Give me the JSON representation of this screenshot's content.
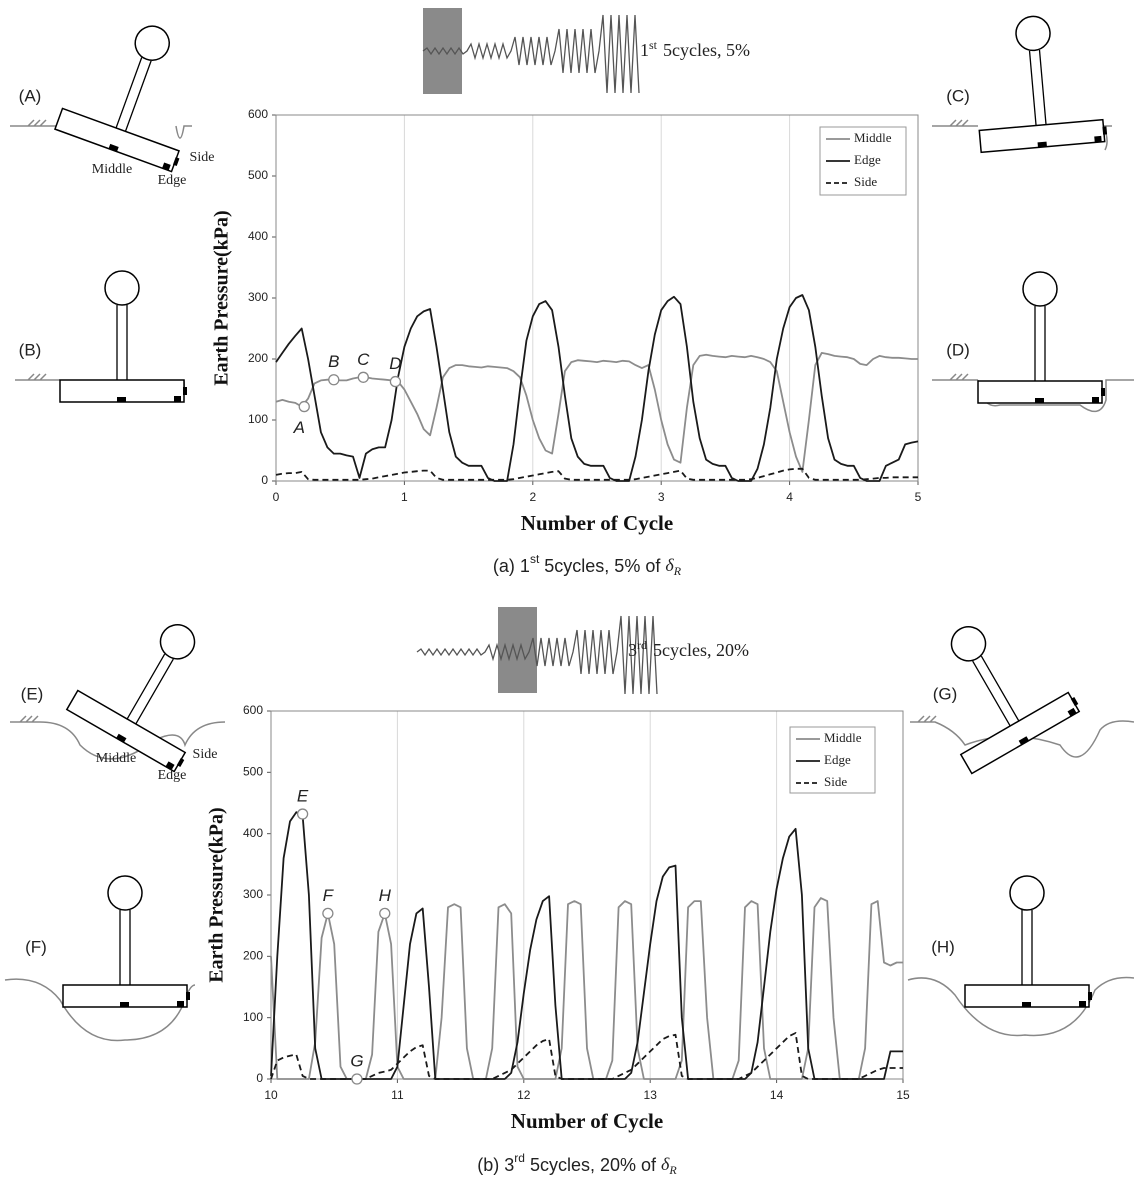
{
  "chart_data": [
    {
      "type": "line",
      "header": {
        "num": "1",
        "sup": "st",
        "text": "5cycles, 5%"
      },
      "caption": {
        "prefix": "(a)  1",
        "sup": "st",
        "text": " 5cycles, 5% of ",
        "symbol": "δ",
        "sub": "R"
      },
      "xlabel": "Number of Cycle",
      "ylabel": "Earth Pressure(kPa)",
      "xlim": [
        0,
        5
      ],
      "ylim": [
        0,
        600
      ],
      "xticks": [
        0,
        1,
        2,
        3,
        4,
        5
      ],
      "yticks": [
        0,
        100,
        200,
        300,
        400,
        500,
        600
      ],
      "grid": "x",
      "legend": "upper right",
      "diagram_labels": [
        "(A)",
        "(B)",
        "(C)",
        "(D)"
      ],
      "part_labels": [
        "Middle",
        "Edge",
        "Side"
      ],
      "x": [
        0,
        0.05,
        0.1,
        0.15,
        0.2,
        0.25,
        0.3,
        0.35,
        0.4,
        0.45,
        0.5,
        0.55,
        0.6,
        0.65,
        0.7,
        0.75,
        0.8,
        0.85,
        0.9,
        0.95,
        1,
        1.05,
        1.1,
        1.15,
        1.2,
        1.25,
        1.3,
        1.35,
        1.4,
        1.45,
        1.5,
        1.55,
        1.6,
        1.65,
        1.7,
        1.75,
        1.8,
        1.85,
        1.9,
        1.95,
        2,
        2.05,
        2.1,
        2.15,
        2.2,
        2.25,
        2.3,
        2.35,
        2.4,
        2.45,
        2.5,
        2.55,
        2.6,
        2.65,
        2.7,
        2.75,
        2.8,
        2.85,
        2.9,
        2.95,
        3,
        3.05,
        3.1,
        3.15,
        3.2,
        3.25,
        3.3,
        3.35,
        3.4,
        3.45,
        3.5,
        3.55,
        3.6,
        3.65,
        3.7,
        3.75,
        3.8,
        3.85,
        3.9,
        3.95,
        4,
        4.05,
        4.1,
        4.15,
        4.2,
        4.25,
        4.3,
        4.35,
        4.4,
        4.45,
        4.5,
        4.55,
        4.6,
        4.65,
        4.7,
        4.75,
        4.8,
        4.85,
        4.9,
        4.95,
        5
      ],
      "series": [
        {
          "name": "Middle",
          "color": "#8c8c8c",
          "dash": false,
          "values": [
            130,
            133,
            130,
            128,
            122,
            135,
            160,
            165,
            166,
            166,
            165,
            165,
            168,
            170,
            170,
            168,
            167,
            166,
            165,
            163,
            150,
            130,
            110,
            85,
            75,
            120,
            170,
            185,
            190,
            190,
            188,
            187,
            186,
            188,
            187,
            186,
            185,
            180,
            170,
            140,
            100,
            70,
            50,
            45,
            110,
            180,
            195,
            198,
            197,
            196,
            195,
            197,
            196,
            195,
            197,
            196,
            190,
            185,
            190,
            150,
            100,
            60,
            35,
            30,
            120,
            190,
            205,
            207,
            205,
            204,
            203,
            205,
            204,
            203,
            205,
            203,
            200,
            195,
            180,
            130,
            80,
            40,
            15,
            100,
            190,
            210,
            208,
            205,
            204,
            203,
            200,
            192,
            190,
            200,
            205,
            203,
            202,
            202,
            201,
            200,
            200
          ]
        },
        {
          "name": "Edge",
          "color": "#1a1a1a",
          "dash": false,
          "values": [
            195,
            210,
            225,
            238,
            250,
            200,
            140,
            80,
            55,
            45,
            45,
            42,
            40,
            5,
            45,
            52,
            55,
            55,
            100,
            170,
            220,
            250,
            270,
            278,
            282,
            220,
            150,
            80,
            40,
            30,
            25,
            25,
            25,
            5,
            0,
            0,
            0,
            60,
            150,
            230,
            270,
            290,
            295,
            280,
            220,
            140,
            70,
            40,
            28,
            25,
            25,
            25,
            5,
            0,
            0,
            0,
            40,
            100,
            180,
            240,
            280,
            295,
            302,
            290,
            220,
            130,
            70,
            35,
            28,
            25,
            25,
            5,
            0,
            0,
            0,
            20,
            60,
            120,
            200,
            250,
            285,
            300,
            305,
            280,
            220,
            140,
            70,
            35,
            28,
            25,
            25,
            5,
            0,
            0,
            0,
            25,
            30,
            35,
            60,
            63,
            65
          ]
        },
        {
          "name": "Side",
          "color": "#1a1a1a",
          "dash": true,
          "values": [
            10,
            12,
            13,
            13,
            15,
            3,
            2,
            2,
            2,
            2,
            2,
            2,
            2,
            2,
            3,
            4,
            6,
            8,
            10,
            12,
            14,
            15,
            16,
            17,
            17,
            5,
            2,
            2,
            2,
            2,
            2,
            2,
            2,
            2,
            2,
            2,
            2,
            3,
            5,
            7,
            9,
            11,
            13,
            15,
            16,
            4,
            2,
            2,
            2,
            2,
            2,
            2,
            2,
            2,
            2,
            2,
            3,
            5,
            7,
            9,
            11,
            13,
            15,
            17,
            4,
            2,
            2,
            2,
            2,
            2,
            2,
            2,
            2,
            2,
            3,
            5,
            8,
            11,
            14,
            17,
            19,
            20,
            20,
            5,
            2,
            2,
            2,
            2,
            2,
            2,
            2,
            2,
            3,
            4,
            5,
            5,
            6,
            6,
            6,
            6,
            6
          ]
        }
      ],
      "annotations": [
        {
          "label": "A",
          "x": 0.22,
          "y": 122
        },
        {
          "label": "B",
          "x": 0.45,
          "y": 166
        },
        {
          "label": "C",
          "x": 0.68,
          "y": 170
        },
        {
          "label": "D",
          "x": 0.93,
          "y": 163
        }
      ]
    },
    {
      "type": "line",
      "header": {
        "num": "3",
        "sup": "rd",
        "text": "5cycles, 20%"
      },
      "caption": {
        "prefix": "(b)  3",
        "sup": "rd",
        "text": " 5cycles, 20% of ",
        "symbol": "δ",
        "sub": "R"
      },
      "xlabel": "Number of Cycle",
      "ylabel": "Earth Pressure(kPa)",
      "xlim": [
        10,
        15
      ],
      "ylim": [
        0,
        600
      ],
      "xticks": [
        10,
        11,
        12,
        13,
        14,
        15
      ],
      "yticks": [
        0,
        100,
        200,
        300,
        400,
        500,
        600
      ],
      "grid": "x",
      "legend": "upper right",
      "diagram_labels": [
        "(E)",
        "(F)",
        "(G)",
        "(H)"
      ],
      "part_labels": [
        "Middle",
        "Edge",
        "Side"
      ],
      "x": [
        10,
        10.05,
        10.1,
        10.15,
        10.2,
        10.25,
        10.3,
        10.35,
        10.4,
        10.45,
        10.5,
        10.55,
        10.6,
        10.65,
        10.7,
        10.75,
        10.8,
        10.85,
        10.9,
        10.95,
        11,
        11.05,
        11.1,
        11.15,
        11.2,
        11.25,
        11.3,
        11.35,
        11.4,
        11.45,
        11.5,
        11.55,
        11.6,
        11.65,
        11.7,
        11.75,
        11.8,
        11.85,
        11.9,
        11.95,
        12,
        12.05,
        12.1,
        12.15,
        12.2,
        12.25,
        12.3,
        12.35,
        12.4,
        12.45,
        12.5,
        12.55,
        12.6,
        12.65,
        12.7,
        12.75,
        12.8,
        12.85,
        12.9,
        12.95,
        13,
        13.05,
        13.1,
        13.15,
        13.2,
        13.25,
        13.3,
        13.35,
        13.4,
        13.45,
        13.5,
        13.55,
        13.6,
        13.65,
        13.7,
        13.75,
        13.8,
        13.85,
        13.9,
        13.95,
        14,
        14.05,
        14.1,
        14.15,
        14.2,
        14.25,
        14.3,
        14.35,
        14.4,
        14.45,
        14.5,
        14.55,
        14.6,
        14.65,
        14.7,
        14.75,
        14.8,
        14.85,
        14.9,
        14.95,
        15
      ],
      "series": [
        {
          "name": "Middle",
          "color": "#8c8c8c",
          "dash": false,
          "values": [
            200,
            0,
            0,
            0,
            0,
            0,
            0,
            60,
            230,
            270,
            220,
            20,
            0,
            0,
            0,
            0,
            40,
            240,
            270,
            220,
            20,
            0,
            0,
            0,
            0,
            0,
            0,
            100,
            280,
            285,
            280,
            50,
            0,
            0,
            0,
            50,
            280,
            285,
            270,
            20,
            0,
            0,
            0,
            0,
            0,
            0,
            50,
            285,
            290,
            285,
            50,
            0,
            0,
            0,
            30,
            280,
            290,
            285,
            50,
            0,
            0,
            0,
            0,
            0,
            0,
            30,
            280,
            290,
            290,
            100,
            0,
            0,
            0,
            0,
            30,
            280,
            290,
            285,
            50,
            0,
            0,
            0,
            0,
            0,
            0,
            50,
            280,
            295,
            290,
            100,
            0,
            0,
            0,
            0,
            50,
            285,
            290,
            190,
            185,
            190,
            190
          ]
        },
        {
          "name": "Edge",
          "color": "#1a1a1a",
          "dash": false,
          "values": [
            5,
            200,
            360,
            420,
            435,
            430,
            300,
            50,
            0,
            0,
            0,
            0,
            0,
            0,
            0,
            0,
            0,
            0,
            0,
            0,
            20,
            120,
            220,
            270,
            278,
            150,
            0,
            0,
            0,
            0,
            0,
            0,
            0,
            0,
            0,
            0,
            0,
            0,
            10,
            60,
            140,
            210,
            260,
            290,
            298,
            120,
            0,
            0,
            0,
            0,
            0,
            0,
            0,
            0,
            0,
            0,
            0,
            10,
            60,
            140,
            220,
            290,
            330,
            345,
            348,
            100,
            0,
            0,
            0,
            0,
            0,
            0,
            0,
            0,
            0,
            0,
            10,
            60,
            150,
            240,
            310,
            360,
            395,
            408,
            300,
            50,
            0,
            0,
            0,
            0,
            0,
            0,
            0,
            0,
            0,
            0,
            0,
            0,
            45,
            45,
            45
          ]
        },
        {
          "name": "Side",
          "color": "#1a1a1a",
          "dash": true,
          "values": [
            0,
            30,
            35,
            38,
            40,
            5,
            0,
            0,
            0,
            0,
            0,
            0,
            0,
            0,
            0,
            0,
            5,
            10,
            12,
            15,
            25,
            35,
            45,
            52,
            55,
            5,
            0,
            0,
            0,
            0,
            0,
            0,
            0,
            0,
            0,
            0,
            5,
            10,
            15,
            25,
            35,
            45,
            55,
            62,
            65,
            5,
            0,
            0,
            0,
            0,
            0,
            0,
            0,
            0,
            0,
            5,
            10,
            15,
            25,
            35,
            45,
            55,
            65,
            70,
            72,
            5,
            0,
            0,
            0,
            0,
            0,
            0,
            0,
            0,
            0,
            5,
            10,
            20,
            30,
            40,
            50,
            60,
            70,
            75,
            5,
            0,
            0,
            0,
            0,
            0,
            0,
            0,
            0,
            0,
            5,
            10,
            15,
            18,
            18,
            18,
            18
          ]
        }
      ],
      "annotations": [
        {
          "label": "E",
          "x": 10.25,
          "y": 432
        },
        {
          "label": "F",
          "x": 10.45,
          "y": 270
        },
        {
          "label": "G",
          "x": 10.68,
          "y": 0
        },
        {
          "label": "H",
          "x": 10.9,
          "y": 270
        }
      ]
    }
  ]
}
